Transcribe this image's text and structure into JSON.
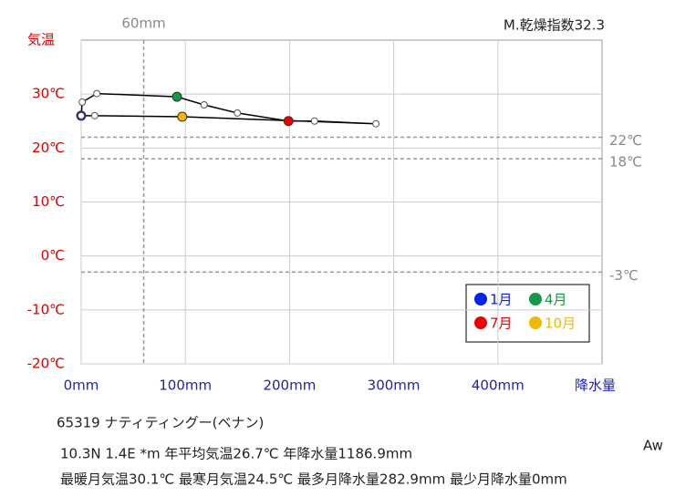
{
  "chart_data": {
    "type": "climograph",
    "y_label": "気温",
    "x_label": "降水量",
    "aridity": "M.乾燥指数32.3",
    "station": "65319 ナティティングー(ベナン)",
    "info_line_1": "10.3N 1.4E *m 年平均気温26.7℃ 年降水量1186.9mm",
    "info_line_2": "最暖月気温30.1℃ 最寒月気温24.5℃ 最多月降水量282.9mm 最少月降水量0mm",
    "climate": "Aw",
    "categories": [
      "1月",
      null,
      null,
      "4月",
      null,
      null,
      "7月",
      null,
      null,
      "10月",
      null,
      null
    ],
    "point_colors": [
      "#0022ee",
      null,
      null,
      "#119944",
      null,
      null,
      "#ee0000",
      null,
      null,
      "#f0b800",
      null,
      null
    ],
    "x": [
      0,
      1,
      15,
      92,
      118,
      150,
      199,
      224,
      283,
      97,
      13,
      0
    ],
    "values": [
      26.0,
      28.5,
      30.1,
      29.5,
      28.0,
      26.5,
      25.0,
      25.0,
      24.5,
      25.8,
      26.0,
      26.0
    ],
    "xlim": [
      0,
      500
    ],
    "ylim": [
      -20,
      40
    ],
    "xticks": [
      {
        "value": 0,
        "label": "0mm"
      },
      {
        "value": 100,
        "label": "100mm"
      },
      {
        "value": 200,
        "label": "200mm"
      },
      {
        "value": 300,
        "label": "300mm"
      },
      {
        "value": 400,
        "label": "400mm"
      }
    ],
    "yticks": [
      {
        "value": -20,
        "label": "-20℃"
      },
      {
        "value": -10,
        "label": "-10℃"
      },
      {
        "value": 0,
        "label": "0℃"
      },
      {
        "value": 10,
        "label": "10℃"
      },
      {
        "value": 20,
        "label": "20℃"
      },
      {
        "value": 30,
        "label": "30℃"
      }
    ],
    "x_reference": [
      {
        "value": 60,
        "label": "60mm"
      }
    ],
    "y_reference": [
      {
        "value": 22,
        "label": "22℃"
      },
      {
        "value": 18,
        "label": "18℃"
      },
      {
        "value": -3,
        "label": "-3℃"
      }
    ],
    "grid": true
  }
}
